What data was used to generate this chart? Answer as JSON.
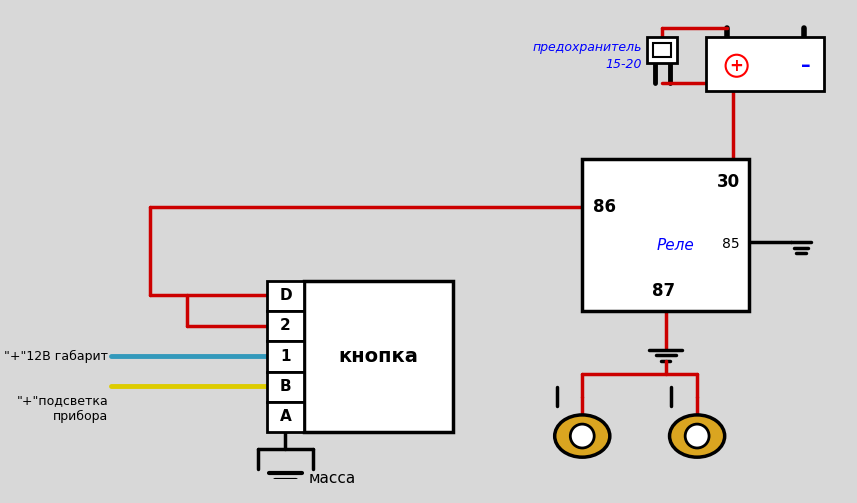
{
  "bg_color": "#d8d8d8",
  "red": "#cc0000",
  "black": "#000000",
  "blue": "#3399bb",
  "yellow": "#ddcc00",
  "relay_label": "Реле",
  "button_label": "кнопка",
  "fuse_label": "предохранитель\n15-20",
  "mass_label": "масса",
  "label_12v": "\"+\"12В габарит",
  "label_podsvjet": "\"+\"подсветка\nприбора",
  "pin_labels": [
    "D",
    "2",
    "1",
    "B",
    "A"
  ]
}
